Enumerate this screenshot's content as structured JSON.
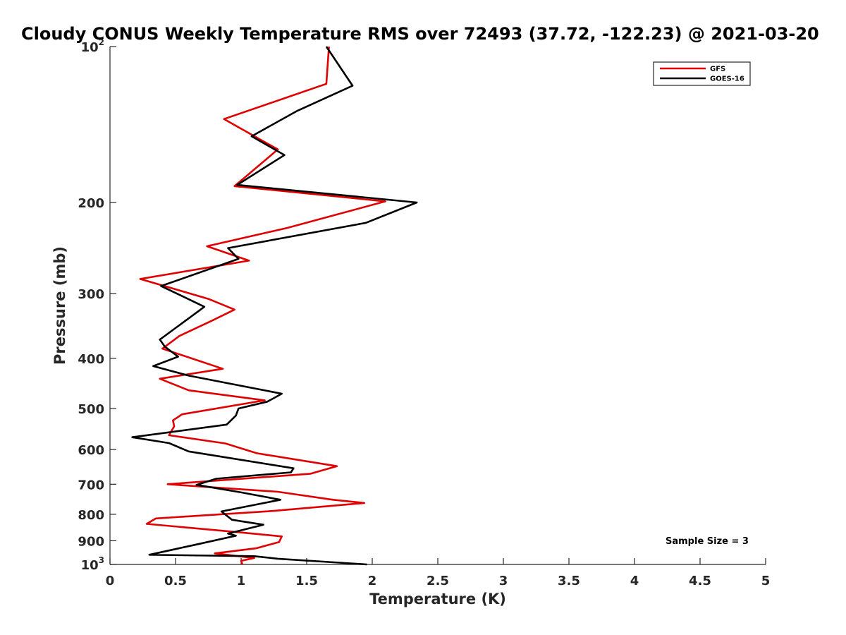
{
  "chart_data": {
    "type": "line",
    "title": "Cloudy CONUS Weekly Temperature RMS over 72493 (37.72, -122.23) @ 2021-03-20",
    "xlabel": "Temperature (K)",
    "ylabel": "Pressure (mb)",
    "xlim": [
      0,
      5
    ],
    "ylim": [
      100,
      1000
    ],
    "y_scale": "log",
    "y_reversed": true,
    "grid": false,
    "legend_position": "top-right",
    "x_ticks": [
      "0",
      "0.5",
      "1",
      "1.5",
      "2",
      "2.5",
      "3",
      "3.5",
      "4",
      "4.5",
      "5"
    ],
    "y_ticks": [
      {
        "value": 100,
        "base": "10",
        "exp": "2"
      },
      {
        "value": 200,
        "base": "200",
        "exp": ""
      },
      {
        "value": 300,
        "base": "300",
        "exp": ""
      },
      {
        "value": 400,
        "base": "400",
        "exp": ""
      },
      {
        "value": 500,
        "base": "500",
        "exp": ""
      },
      {
        "value": 600,
        "base": "600",
        "exp": ""
      },
      {
        "value": 700,
        "base": "700",
        "exp": ""
      },
      {
        "value": 800,
        "base": "800",
        "exp": ""
      },
      {
        "value": 900,
        "base": "900",
        "exp": ""
      },
      {
        "value": 1000,
        "base": "10",
        "exp": "3"
      }
    ],
    "series": [
      {
        "name": "GFS",
        "color": "#e00000",
        "points": [
          [
            1.67,
            100
          ],
          [
            1.65,
            118
          ],
          [
            0.87,
            138
          ],
          [
            1.28,
            158
          ],
          [
            0.95,
            186
          ],
          [
            2.1,
            199
          ],
          [
            1.35,
            224
          ],
          [
            0.74,
            243
          ],
          [
            1.06,
            259
          ],
          [
            0.23,
            281
          ],
          [
            0.75,
            307
          ],
          [
            0.95,
            322
          ],
          [
            0.77,
            339
          ],
          [
            0.53,
            362
          ],
          [
            0.4,
            383
          ],
          [
            0.86,
            419
          ],
          [
            0.38,
            438
          ],
          [
            0.6,
            461
          ],
          [
            1.18,
            482
          ],
          [
            0.55,
            513
          ],
          [
            0.48,
            527
          ],
          [
            0.49,
            541
          ],
          [
            0.45,
            563
          ],
          [
            0.88,
            584
          ],
          [
            1.12,
            610
          ],
          [
            1.73,
            646
          ],
          [
            1.53,
            668
          ],
          [
            0.44,
            700
          ],
          [
            1.28,
            724
          ],
          [
            1.7,
            750
          ],
          [
            1.94,
            761
          ],
          [
            1.25,
            788
          ],
          [
            0.35,
            815
          ],
          [
            0.28,
            835
          ],
          [
            0.95,
            865
          ],
          [
            1.31,
            883
          ],
          [
            1.29,
            905
          ],
          [
            1.12,
            930
          ],
          [
            0.8,
            952
          ],
          [
            1.1,
            972
          ],
          [
            1.0,
            984
          ],
          [
            1.01,
            1000
          ]
        ]
      },
      {
        "name": "GOES-16",
        "color": "#000000",
        "points": [
          [
            1.65,
            100
          ],
          [
            1.85,
            119
          ],
          [
            1.43,
            133
          ],
          [
            1.08,
            149
          ],
          [
            1.33,
            162
          ],
          [
            0.97,
            185
          ],
          [
            2.34,
            200
          ],
          [
            1.95,
            219
          ],
          [
            0.9,
            245
          ],
          [
            0.98,
            257
          ],
          [
            0.39,
            290
          ],
          [
            0.72,
            318
          ],
          [
            0.51,
            348
          ],
          [
            0.38,
            368
          ],
          [
            0.42,
            380
          ],
          [
            0.52,
            397
          ],
          [
            0.33,
            414
          ],
          [
            0.6,
            432
          ],
          [
            1.31,
            468
          ],
          [
            1.2,
            485
          ],
          [
            0.98,
            500
          ],
          [
            0.96,
            516
          ],
          [
            0.89,
            537
          ],
          [
            0.17,
            568
          ],
          [
            0.45,
            583
          ],
          [
            0.6,
            605
          ],
          [
            1.4,
            652
          ],
          [
            1.38,
            664
          ],
          [
            0.81,
            683
          ],
          [
            0.66,
            702
          ],
          [
            1.0,
            726
          ],
          [
            1.3,
            750
          ],
          [
            0.85,
            790
          ],
          [
            0.93,
            820
          ],
          [
            1.17,
            838
          ],
          [
            0.9,
            872
          ],
          [
            0.96,
            880
          ],
          [
            0.66,
            915
          ],
          [
            0.3,
            958
          ],
          [
            1.1,
            964
          ],
          [
            1.28,
            975
          ],
          [
            1.96,
            1000
          ]
        ]
      }
    ],
    "annotation": "Sample Size = 3"
  }
}
